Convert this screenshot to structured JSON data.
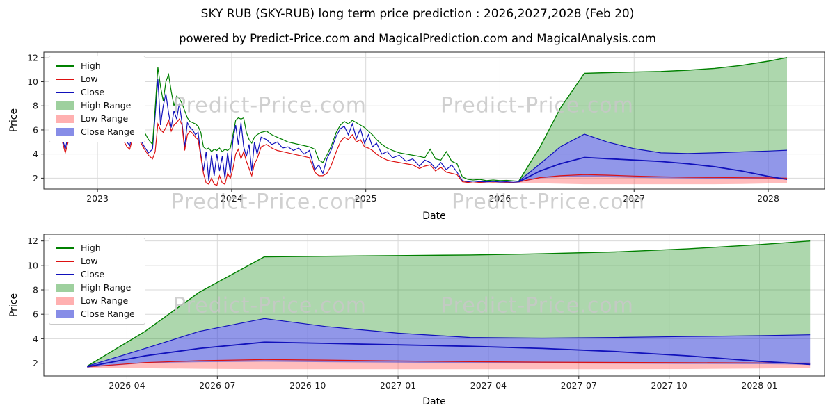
{
  "title": "SKY RUB (SKY-RUB) long term price prediction : 2026,2027,2028 (Feb 20)",
  "subtitle": "powered by Predict-Price.com and MagicalPrediction.com and MagicalAnalysis.com",
  "watermark_text": "Predict-Price.com",
  "colors": {
    "high": "#008000",
    "low": "#dd1111",
    "close": "#1111bb",
    "high_range_fill": "rgba(40,150,40,0.38)",
    "low_range_fill": "rgba(255,80,80,0.38)",
    "close_range_fill": "rgba(55,65,215,0.55)",
    "grid": "#d9d9d9",
    "spine": "#262626",
    "watermark": "#c8c8c8"
  },
  "legend": [
    {
      "label": "High",
      "type": "line",
      "color": "#008000"
    },
    {
      "label": "Low",
      "type": "line",
      "color": "#dd1111"
    },
    {
      "label": "Close",
      "type": "line",
      "color": "#1111bb"
    },
    {
      "label": "High Range",
      "type": "patch",
      "color": "rgba(40,150,40,0.45)"
    },
    {
      "label": "Low Range",
      "type": "patch",
      "color": "rgba(255,80,80,0.45)"
    },
    {
      "label": "Close Range",
      "type": "patch",
      "color": "rgba(55,65,215,0.6)"
    }
  ],
  "chart_data": [
    {
      "type": "line",
      "title": "SKY RUB historical prices with 2026-2028 prediction ranges",
      "xlabel": "Date",
      "ylabel": "Price",
      "xlim": [
        2022.6,
        2028.42
      ],
      "ylim": [
        1.1,
        12.45
      ],
      "yticks": [
        2,
        4,
        6,
        8,
        10,
        12
      ],
      "xticks": {
        "values": [
          2023,
          2024,
          2025,
          2026,
          2027,
          2028
        ],
        "labels": [
          "2023",
          "2024",
          "2025",
          "2026",
          "2027",
          "2028"
        ]
      },
      "historical": {
        "x": [
          2022.72,
          2022.76,
          2022.8,
          2022.84,
          2022.88,
          2022.92,
          2022.96,
          2023.0,
          2023.04,
          2023.08,
          2023.1,
          2023.12,
          2023.14,
          2023.16,
          2023.18,
          2023.2,
          2023.22,
          2023.24,
          2023.26,
          2023.29,
          2023.32,
          2023.35,
          2023.38,
          2023.41,
          2023.43,
          2023.45,
          2023.47,
          2023.49,
          2023.51,
          2023.53,
          2023.55,
          2023.57,
          2023.59,
          2023.61,
          2023.63,
          2023.65,
          2023.67,
          2023.69,
          2023.71,
          2023.73,
          2023.75,
          2023.77,
          2023.79,
          2023.81,
          2023.83,
          2023.85,
          2023.87,
          2023.89,
          2023.91,
          2023.93,
          2023.95,
          2023.97,
          2023.99,
          2024.01,
          2024.03,
          2024.05,
          2024.07,
          2024.09,
          2024.11,
          2024.13,
          2024.15,
          2024.17,
          2024.19,
          2024.22,
          2024.26,
          2024.3,
          2024.34,
          2024.38,
          2024.42,
          2024.46,
          2024.5,
          2024.54,
          2024.58,
          2024.62,
          2024.65,
          2024.68,
          2024.71,
          2024.74,
          2024.78,
          2024.81,
          2024.84,
          2024.87,
          2024.9,
          2024.93,
          2024.96,
          2024.99,
          2025.02,
          2025.05,
          2025.08,
          2025.12,
          2025.16,
          2025.2,
          2025.25,
          2025.3,
          2025.35,
          2025.4,
          2025.44,
          2025.48,
          2025.52,
          2025.56,
          2025.6,
          2025.64,
          2025.68,
          2025.72,
          2025.76,
          2025.8,
          2025.85,
          2025.9,
          2025.95,
          2026.0,
          2026.05,
          2026.1,
          2026.14
        ],
        "high": [
          6.4,
          6.6,
          6.9,
          7.0,
          6.6,
          6.8,
          7.2,
          7.4,
          7.0,
          8.5,
          10.4,
          9.8,
          8.2,
          9.0,
          10.2,
          8.8,
          7.6,
          6.8,
          6.4,
          6.6,
          6.2,
          5.8,
          5.2,
          4.8,
          7.8,
          11.2,
          9.6,
          8.4,
          10.0,
          10.6,
          9.2,
          8.0,
          8.8,
          8.6,
          8.2,
          7.6,
          7.0,
          6.7,
          6.6,
          6.5,
          6.3,
          5.8,
          4.6,
          4.4,
          4.5,
          4.2,
          4.4,
          4.3,
          4.5,
          4.2,
          4.4,
          4.3,
          4.5,
          5.6,
          6.8,
          7.0,
          6.9,
          7.0,
          5.8,
          5.2,
          4.9,
          5.4,
          5.6,
          5.8,
          5.9,
          5.6,
          5.4,
          5.2,
          5.0,
          4.9,
          4.8,
          4.7,
          4.6,
          4.4,
          3.5,
          3.3,
          3.9,
          4.6,
          5.8,
          6.4,
          6.7,
          6.5,
          6.8,
          6.6,
          6.4,
          6.2,
          5.9,
          5.6,
          5.2,
          4.8,
          4.5,
          4.3,
          4.1,
          4.0,
          3.9,
          3.8,
          3.7,
          4.4,
          3.6,
          3.5,
          4.2,
          3.4,
          3.2,
          2.1,
          1.9,
          1.85,
          1.9,
          1.8,
          1.85,
          1.8,
          1.82,
          1.78,
          1.75
        ],
        "low": [
          5.8,
          4.1,
          5.8,
          6.1,
          5.6,
          5.9,
          6.3,
          6.4,
          6.0,
          6.2,
          7.0,
          6.5,
          5.2,
          5.5,
          6.8,
          5.0,
          4.6,
          4.4,
          5.2,
          5.6,
          5.0,
          4.4,
          3.9,
          3.6,
          4.2,
          6.5,
          6.0,
          5.8,
          6.2,
          6.8,
          5.9,
          6.4,
          6.6,
          6.9,
          6.4,
          4.3,
          5.6,
          5.9,
          5.7,
          5.4,
          5.2,
          3.8,
          2.4,
          1.6,
          1.5,
          2.0,
          1.5,
          1.4,
          2.2,
          1.6,
          1.5,
          2.4,
          2.0,
          2.8,
          4.0,
          4.4,
          3.6,
          4.2,
          3.4,
          2.8,
          2.2,
          3.2,
          3.6,
          4.6,
          4.8,
          4.5,
          4.3,
          4.2,
          4.1,
          4.0,
          3.9,
          3.8,
          3.7,
          2.5,
          2.2,
          2.2,
          2.4,
          3.0,
          4.2,
          5.0,
          5.4,
          5.2,
          5.6,
          5.0,
          5.2,
          4.6,
          4.5,
          4.3,
          4.0,
          3.7,
          3.5,
          3.4,
          3.3,
          3.2,
          3.1,
          2.8,
          3.0,
          3.1,
          2.6,
          2.9,
          2.5,
          2.4,
          2.3,
          1.7,
          1.65,
          1.6,
          1.65,
          1.6,
          1.62,
          1.6,
          1.62,
          1.6,
          1.6
        ],
        "close": [
          6.1,
          4.4,
          6.6,
          6.4,
          5.8,
          6.5,
          7.0,
          6.8,
          6.2,
          7.8,
          9.6,
          7.0,
          5.6,
          8.4,
          7.2,
          5.4,
          5.0,
          4.7,
          5.6,
          6.0,
          5.2,
          4.6,
          4.1,
          4.4,
          7.2,
          10.2,
          6.4,
          8.0,
          9.0,
          7.4,
          6.2,
          7.6,
          6.9,
          8.2,
          6.6,
          4.6,
          6.6,
          6.2,
          6.0,
          5.6,
          5.8,
          4.0,
          2.6,
          4.2,
          1.8,
          3.9,
          2.2,
          4.0,
          2.6,
          3.8,
          2.0,
          4.1,
          2.4,
          5.2,
          6.4,
          4.8,
          6.6,
          4.6,
          3.8,
          4.8,
          2.6,
          5.0,
          4.0,
          5.4,
          5.2,
          4.8,
          5.0,
          4.5,
          4.6,
          4.3,
          4.5,
          4.0,
          4.3,
          2.7,
          3.1,
          2.4,
          3.6,
          4.3,
          5.5,
          6.1,
          6.3,
          5.6,
          6.5,
          5.3,
          6.1,
          4.9,
          5.6,
          4.6,
          4.9,
          4.0,
          4.2,
          3.7,
          3.9,
          3.4,
          3.6,
          3.0,
          3.5,
          3.3,
          2.8,
          3.3,
          2.7,
          3.1,
          2.5,
          1.8,
          1.7,
          1.75,
          1.7,
          1.7,
          1.72,
          1.68,
          1.7,
          1.66,
          1.7
        ]
      },
      "forecast": {
        "x": [
          2026.14,
          2026.3,
          2026.45,
          2026.63,
          2026.8,
          2027.0,
          2027.2,
          2027.4,
          2027.6,
          2027.8,
          2028.0,
          2028.14
        ],
        "high_range_top": [
          1.75,
          4.6,
          7.8,
          10.7,
          10.75,
          10.8,
          10.85,
          10.95,
          11.1,
          11.35,
          11.7,
          12.0
        ],
        "close_range_top": [
          1.75,
          3.2,
          4.6,
          5.65,
          5.0,
          4.45,
          4.1,
          4.05,
          4.1,
          4.18,
          4.25,
          4.32
        ],
        "close": [
          1.7,
          2.6,
          3.2,
          3.72,
          3.62,
          3.5,
          3.38,
          3.2,
          2.95,
          2.6,
          2.15,
          1.9
        ],
        "close_range_bottom": [
          1.65,
          2.0,
          2.08,
          2.12,
          2.08,
          2.04,
          2.0,
          1.98,
          1.96,
          1.94,
          1.92,
          1.88
        ],
        "low_range_top": [
          1.7,
          2.05,
          2.2,
          2.3,
          2.25,
          2.18,
          2.12,
          2.08,
          2.06,
          2.04,
          2.02,
          2.0
        ],
        "low_range_bottom": [
          1.6,
          1.58,
          1.54,
          1.5,
          1.5,
          1.5,
          1.5,
          1.5,
          1.5,
          1.52,
          1.56,
          1.6
        ]
      }
    },
    {
      "type": "line",
      "title": "SKY RUB 2026-2028 prediction ranges (zoom)",
      "xlabel": "Date",
      "ylabel": "Price",
      "xlim": [
        2026.02,
        2028.18
      ],
      "ylim": [
        0.95,
        12.55
      ],
      "yticks": [
        2,
        4,
        6,
        8,
        10,
        12
      ],
      "xticks": {
        "values": [
          2026.25,
          2026.5,
          2026.75,
          2027.0,
          2027.25,
          2027.5,
          2027.75,
          2028.0
        ],
        "labels": [
          "2026-04",
          "2026-07",
          "2026-10",
          "2027-01",
          "2027-04",
          "2027-07",
          "2027-10",
          "2028-01"
        ]
      },
      "forecast": {
        "x": [
          2026.14,
          2026.3,
          2026.45,
          2026.63,
          2026.8,
          2027.0,
          2027.2,
          2027.4,
          2027.6,
          2027.8,
          2028.0,
          2028.14
        ],
        "high_range_top": [
          1.75,
          4.6,
          7.8,
          10.7,
          10.75,
          10.8,
          10.85,
          10.95,
          11.1,
          11.35,
          11.7,
          12.0
        ],
        "close_range_top": [
          1.75,
          3.2,
          4.6,
          5.65,
          5.0,
          4.45,
          4.1,
          4.05,
          4.1,
          4.18,
          4.25,
          4.32
        ],
        "close": [
          1.7,
          2.6,
          3.2,
          3.72,
          3.62,
          3.5,
          3.38,
          3.2,
          2.95,
          2.6,
          2.15,
          1.9
        ],
        "close_range_bottom": [
          1.65,
          2.0,
          2.08,
          2.12,
          2.08,
          2.04,
          2.0,
          1.98,
          1.96,
          1.94,
          1.92,
          1.88
        ],
        "low_range_top": [
          1.7,
          2.05,
          2.2,
          2.3,
          2.25,
          2.18,
          2.12,
          2.08,
          2.06,
          2.04,
          2.02,
          2.0
        ],
        "low_range_bottom": [
          1.6,
          1.58,
          1.54,
          1.5,
          1.5,
          1.5,
          1.5,
          1.5,
          1.5,
          1.52,
          1.56,
          1.6
        ]
      }
    }
  ]
}
